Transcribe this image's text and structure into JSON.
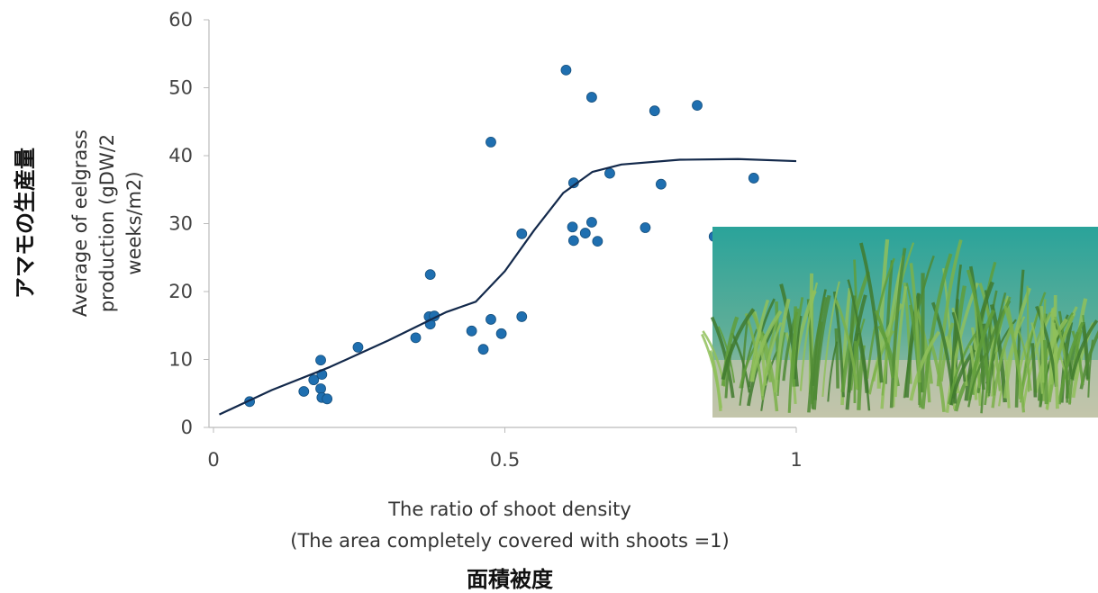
{
  "chart_data": {
    "type": "scatter",
    "y_label": [
      "Average of eelgrass",
      "production (gDW/2",
      "weeks/m2)"
    ],
    "y_label_ja": "アマモの生産量",
    "x_label": [
      "The ratio of shoot density",
      "(The area completely covered with shoots =1)"
    ],
    "x_label_ja": "面積被度",
    "xlim": [
      0,
      1
    ],
    "xticks": [
      0,
      0.5,
      1
    ],
    "ylim": [
      0,
      60
    ],
    "yticks": [
      0,
      10,
      20,
      30,
      40,
      50,
      60
    ],
    "series": [
      {
        "type": "scatter",
        "color": "#1f6fb0",
        "x": [
          0.062,
          0.155,
          0.172,
          0.184,
          0.186,
          0.184,
          0.186,
          0.195,
          0.248,
          0.347,
          0.37,
          0.372,
          0.372,
          0.379,
          0.443,
          0.463,
          0.476,
          0.476,
          0.494,
          0.529,
          0.529,
          0.605,
          0.618,
          0.616,
          0.618,
          0.638,
          0.649,
          0.649,
          0.659,
          0.68,
          0.741,
          0.757,
          0.768,
          0.83,
          0.927,
          0.859
        ],
        "values": [
          3.8,
          5.3,
          7.0,
          9.9,
          7.8,
          5.7,
          4.4,
          4.2,
          11.8,
          13.2,
          16.3,
          15.2,
          22.5,
          16.4,
          14.2,
          11.5,
          15.9,
          42.0,
          13.8,
          28.5,
          16.3,
          52.6,
          36.0,
          29.5,
          27.5,
          28.6,
          48.6,
          30.2,
          27.4,
          37.4,
          29.4,
          46.6,
          35.8,
          47.4,
          36.7,
          28.1
        ]
      },
      {
        "type": "line",
        "color": "#13294b",
        "x": [
          0.01,
          0.1,
          0.2,
          0.3,
          0.4,
          0.45,
          0.5,
          0.55,
          0.6,
          0.65,
          0.7,
          0.8,
          0.9,
          1.0
        ],
        "values": [
          1.9,
          5.5,
          8.9,
          12.8,
          17.0,
          18.5,
          23.0,
          29.0,
          34.5,
          37.6,
          38.7,
          39.4,
          39.5,
          39.2
        ]
      }
    ]
  }
}
